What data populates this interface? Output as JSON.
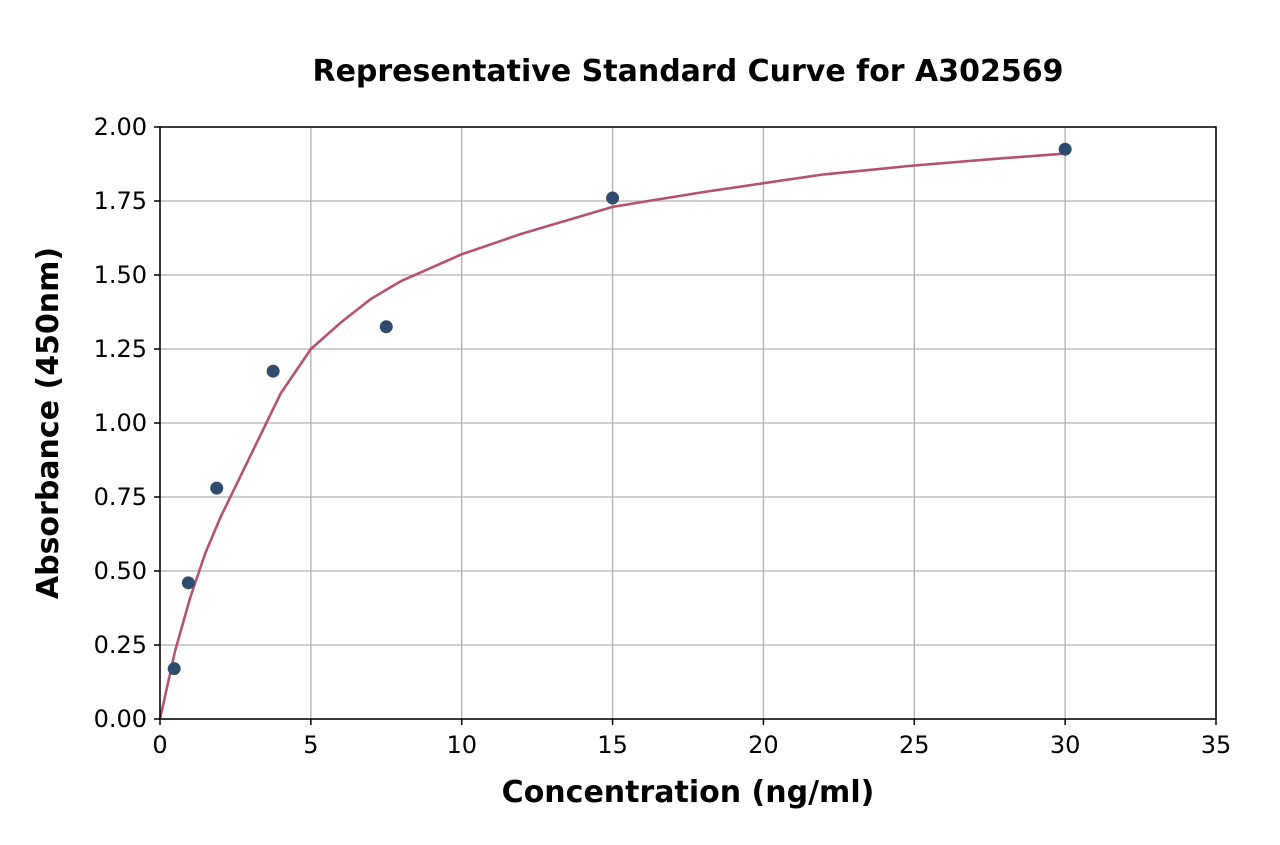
{
  "chart_data": {
    "type": "scatter",
    "title": "Representative Standard Curve for A302569",
    "xlabel": "Concentration (ng/ml)",
    "ylabel": "Absorbance (450nm)",
    "xlim": [
      0,
      35
    ],
    "ylim": [
      0,
      2.0
    ],
    "xticks": [
      0,
      5,
      10,
      15,
      20,
      25,
      30,
      35
    ],
    "xtick_labels": [
      "0",
      "5",
      "10",
      "15",
      "20",
      "25",
      "30",
      "35"
    ],
    "yticks": [
      0,
      0.25,
      0.5,
      0.75,
      1.0,
      1.25,
      1.5,
      1.75,
      2.0
    ],
    "ytick_labels": [
      "0.00",
      "0.25",
      "0.50",
      "0.75",
      "1.00",
      "1.25",
      "1.50",
      "1.75",
      "2.00"
    ],
    "grid": true,
    "series": [
      {
        "kind": "points",
        "color": "#2f4b6e",
        "x": [
          0.47,
          0.94,
          1.88,
          3.75,
          7.5,
          15,
          30
        ],
        "y": [
          0.17,
          0.46,
          0.78,
          1.175,
          1.325,
          1.76,
          1.925
        ]
      },
      {
        "kind": "fitted-curve",
        "color": "#b5536f",
        "x": [
          0,
          0.5,
          1,
          1.5,
          2,
          3,
          4,
          5,
          6,
          7,
          8,
          10,
          12,
          15,
          18,
          20,
          22,
          25,
          28,
          30
        ],
        "y": [
          0,
          0.23,
          0.41,
          0.56,
          0.68,
          0.89,
          1.1,
          1.25,
          1.34,
          1.42,
          1.48,
          1.57,
          1.64,
          1.73,
          1.78,
          1.81,
          1.84,
          1.87,
          1.895,
          1.91
        ]
      }
    ]
  }
}
